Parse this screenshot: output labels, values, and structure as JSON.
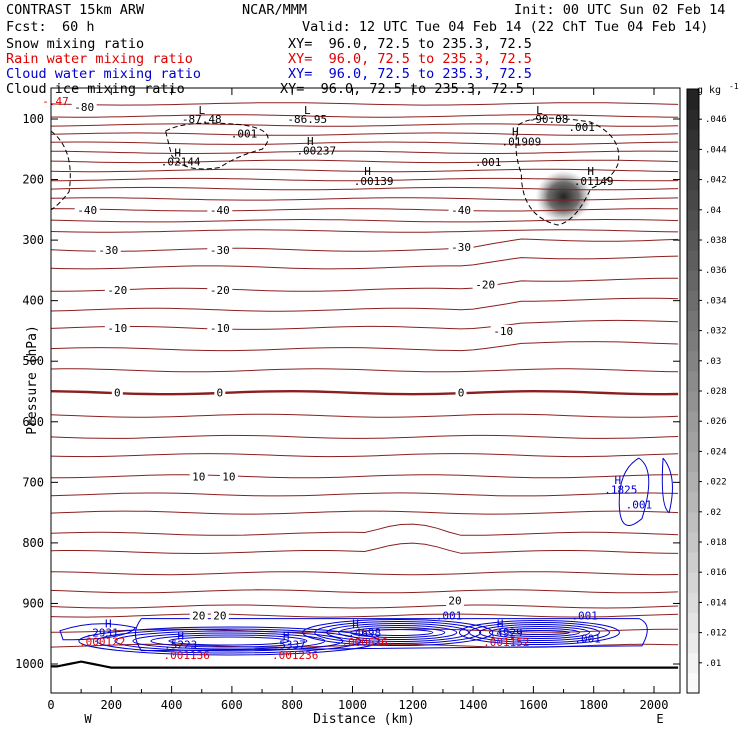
{
  "header": {
    "model": "CONTRAST 15km ARW",
    "org": "NCAR/MMM",
    "init": "Init: 00 UTC Sun 02 Feb 14",
    "fcst_label": "Fcst:",
    "fcst_value": "60 h",
    "valid": "Valid: 12 UTC Tue 04 Feb 14 (22 ChT Tue 04 Feb 14)"
  },
  "fields": [
    {
      "name": "Snow mixing ratio",
      "xy": "XY=  96.0, 72.5 to 235.3, 72.5",
      "color": "#000000"
    },
    {
      "name": "Rain water mixing ratio",
      "xy": "XY=  96.0, 72.5 to 235.3, 72.5",
      "color": "#e00000"
    },
    {
      "name": "Cloud water mixing ratio",
      "xy": "XY=  96.0, 72.5 to 235.3, 72.5",
      "color": "#0000d0"
    },
    {
      "name": "Cloud ice mixing ratio",
      "xy": "XY=  96.0, 72.5 to 235.3, 72.5",
      "color": "#000000"
    }
  ],
  "chart_data": {
    "type": "cross-section contour",
    "xlabel": "Distance (km)",
    "ylabel": "Pressure (hPa)",
    "xlim": [
      0,
      2080
    ],
    "ylim": [
      1070,
      50
    ],
    "x_ticks": [
      0,
      200,
      400,
      600,
      800,
      1000,
      1200,
      1400,
      1600,
      1800,
      2000
    ],
    "y_ticks": [
      100,
      200,
      300,
      400,
      500,
      600,
      700,
      800,
      900,
      1000
    ],
    "x_ends": {
      "left": "W",
      "right": "E"
    },
    "colorbar": {
      "unit": "g kg",
      "unit_exp": "-1",
      "ticks": [
        0.01,
        0.012,
        0.014,
        0.016,
        0.018,
        0.02,
        0.022,
        0.024,
        0.026,
        0.028,
        0.03,
        0.032,
        0.034,
        0.036,
        0.038,
        0.04,
        0.042,
        0.044,
        0.046
      ],
      "tick_labels": [
        ".01",
        ".012",
        ".014",
        ".016",
        ".018",
        ".02",
        ".022",
        ".024",
        ".026",
        ".028",
        ".03",
        ".032",
        ".034",
        ".036",
        ".038",
        ".04",
        ".042",
        ".044",
        ".046"
      ]
    },
    "temperature_labels": [
      {
        "text": "-80",
        "x": 110,
        "p": 80
      },
      {
        "text": "-40",
        "x": 120,
        "p": 250
      },
      {
        "text": "-40",
        "x": 560,
        "p": 250
      },
      {
        "text": "-40",
        "x": 1360,
        "p": 250
      },
      {
        "text": "-30",
        "x": 190,
        "p": 316
      },
      {
        "text": "-30",
        "x": 560,
        "p": 316
      },
      {
        "text": "-30",
        "x": 1360,
        "p": 311
      },
      {
        "text": "-20",
        "x": 1440,
        "p": 373
      },
      {
        "text": "-20",
        "x": 220,
        "p": 382
      },
      {
        "text": "-20",
        "x": 560,
        "p": 382
      },
      {
        "text": "-10",
        "x": 220,
        "p": 445
      },
      {
        "text": "-10",
        "x": 560,
        "p": 445
      },
      {
        "text": "-10",
        "x": 1500,
        "p": 450
      },
      {
        "text": "0",
        "x": 220,
        "p": 552
      },
      {
        "text": "0",
        "x": 560,
        "p": 552
      },
      {
        "text": "0",
        "x": 1360,
        "p": 552
      },
      {
        "text": "10",
        "x": 490,
        "p": 690
      },
      {
        "text": "10",
        "x": 590,
        "p": 690
      },
      {
        "text": "20",
        "x": 1340,
        "p": 895
      },
      {
        "text": "20",
        "x": 490,
        "p": 920
      },
      {
        "text": "20",
        "x": 560,
        "p": 920
      }
    ],
    "extrema_labels": [
      {
        "text": "L",
        "x": 500,
        "p": 85,
        "color": "#000000"
      },
      {
        "text": "-87.48",
        "x": 500,
        "p": 100,
        "color": "#000000"
      },
      {
        "text": "L",
        "x": 850,
        "p": 85,
        "color": "#000000"
      },
      {
        "text": "-86.95",
        "x": 850,
        "p": 100,
        "color": "#000000"
      },
      {
        "text": "L",
        "x": 1620,
        "p": 85,
        "color": "#000000"
      },
      {
        "text": "-90.08",
        "x": 1650,
        "p": 100,
        "color": "#000000"
      },
      {
        "text": "H",
        "x": 420,
        "p": 155,
        "color": "#000000"
      },
      {
        "text": ".02144",
        "x": 430,
        "p": 170,
        "color": "#000000"
      },
      {
        "text": ".001",
        "x": 640,
        "p": 124,
        "color": "#000000"
      },
      {
        "text": "H",
        "x": 860,
        "p": 136,
        "color": "#000000"
      },
      {
        "text": ".00237",
        "x": 880,
        "p": 152,
        "color": "#000000"
      },
      {
        "text": "H",
        "x": 1050,
        "p": 186,
        "color": "#000000"
      },
      {
        "text": ".00139",
        "x": 1070,
        "p": 202,
        "color": "#000000"
      },
      {
        "text": ".001",
        "x": 1450,
        "p": 171,
        "color": "#000000"
      },
      {
        "text": "H",
        "x": 1540,
        "p": 121,
        "color": "#000000"
      },
      {
        "text": ".01909",
        "x": 1560,
        "p": 137,
        "color": "#000000"
      },
      {
        "text": ".001",
        "x": 1760,
        "p": 113,
        "color": "#000000"
      },
      {
        "text": "H",
        "x": 1790,
        "p": 186,
        "color": "#000000"
      },
      {
        "text": ".01149",
        "x": 1800,
        "p": 202,
        "color": "#000000"
      },
      {
        "text": "-.47",
        "x": 15,
        "p": 70,
        "color": "#e00000"
      },
      {
        "text": "H",
        "x": 1880,
        "p": 696,
        "color": "#0000d0"
      },
      {
        "text": ".1825",
        "x": 1890,
        "p": 712,
        "color": "#0000d0"
      },
      {
        "text": ".001",
        "x": 1950,
        "p": 737,
        "color": "#0000d0"
      },
      {
        "text": ".001",
        "x": 1320,
        "p": 920,
        "color": "#0000d0"
      },
      {
        "text": ".001",
        "x": 1770,
        "p": 920,
        "color": "#0000d0"
      },
      {
        "text": ".001",
        "x": 1780,
        "p": 958,
        "color": "#0000d0"
      },
      {
        "text": "H",
        "x": 190,
        "p": 933,
        "color": "#0000d0"
      },
      {
        "text": ".2931",
        "x": 170,
        "p": 948,
        "color": "#0000d0"
      },
      {
        "text": ".000122",
        "x": 170,
        "p": 963,
        "color": "#e00000"
      },
      {
        "text": "H",
        "x": 430,
        "p": 953,
        "color": "#0000d0"
      },
      {
        "text": ".5223",
        "x": 430,
        "p": 968,
        "color": "#0000d0"
      },
      {
        "text": ".001136",
        "x": 450,
        "p": 985,
        "color": "#e00000"
      },
      {
        "text": "H",
        "x": 780,
        "p": 953,
        "color": "#0000d0"
      },
      {
        "text": ".5337",
        "x": 790,
        "p": 968,
        "color": "#0000d0"
      },
      {
        "text": ".001236",
        "x": 810,
        "p": 985,
        "color": "#e00000"
      },
      {
        "text": "H",
        "x": 1010,
        "p": 933,
        "color": "#0000d0"
      },
      {
        "text": ".4698",
        "x": 1040,
        "p": 948,
        "color": "#0000d0"
      },
      {
        "text": ".000636",
        "x": 1040,
        "p": 964,
        "color": "#e00000"
      },
      {
        "text": "H",
        "x": 1490,
        "p": 933,
        "color": "#0000d0"
      },
      {
        "text": ".4929",
        "x": 1510,
        "p": 948,
        "color": "#0000d0"
      },
      {
        "text": ".001152",
        "x": 1510,
        "p": 964,
        "color": "#e00000"
      }
    ]
  }
}
